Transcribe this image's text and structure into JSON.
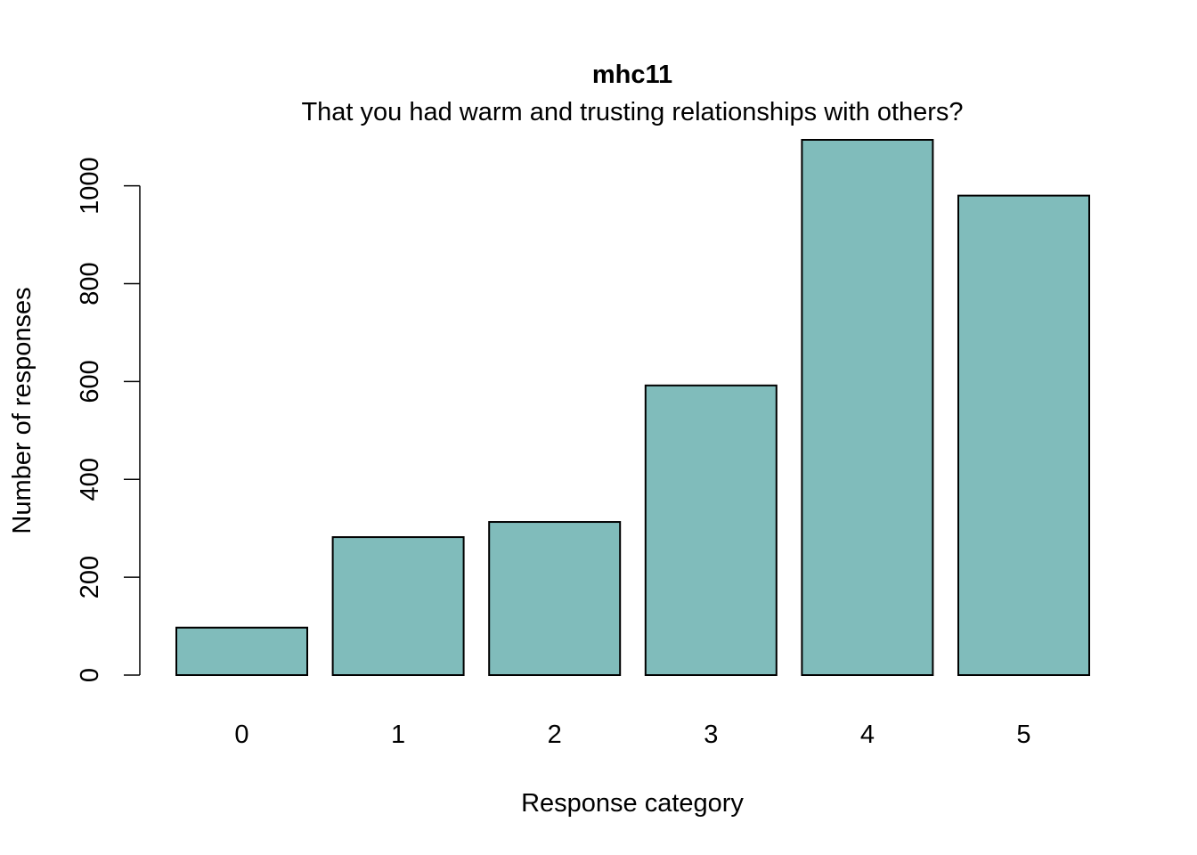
{
  "chart_data": {
    "type": "bar",
    "title": "mhc11",
    "subtitle": "That you had warm and trusting relationships with others?",
    "xlabel": "Response category",
    "ylabel": "Number of responses",
    "categories": [
      "0",
      "1",
      "2",
      "3",
      "4",
      "5"
    ],
    "values": [
      97,
      282,
      313,
      592,
      1094,
      980
    ],
    "ylim": [
      0,
      1094
    ],
    "yticks": [
      0,
      200,
      400,
      600,
      800,
      1000
    ],
    "ytick_labels": [
      "0",
      "200",
      "400",
      "600",
      "800",
      "1000"
    ],
    "grid": false,
    "legend": "none",
    "bar_color": "#80BCBB",
    "bar_border_color": "#000000"
  }
}
